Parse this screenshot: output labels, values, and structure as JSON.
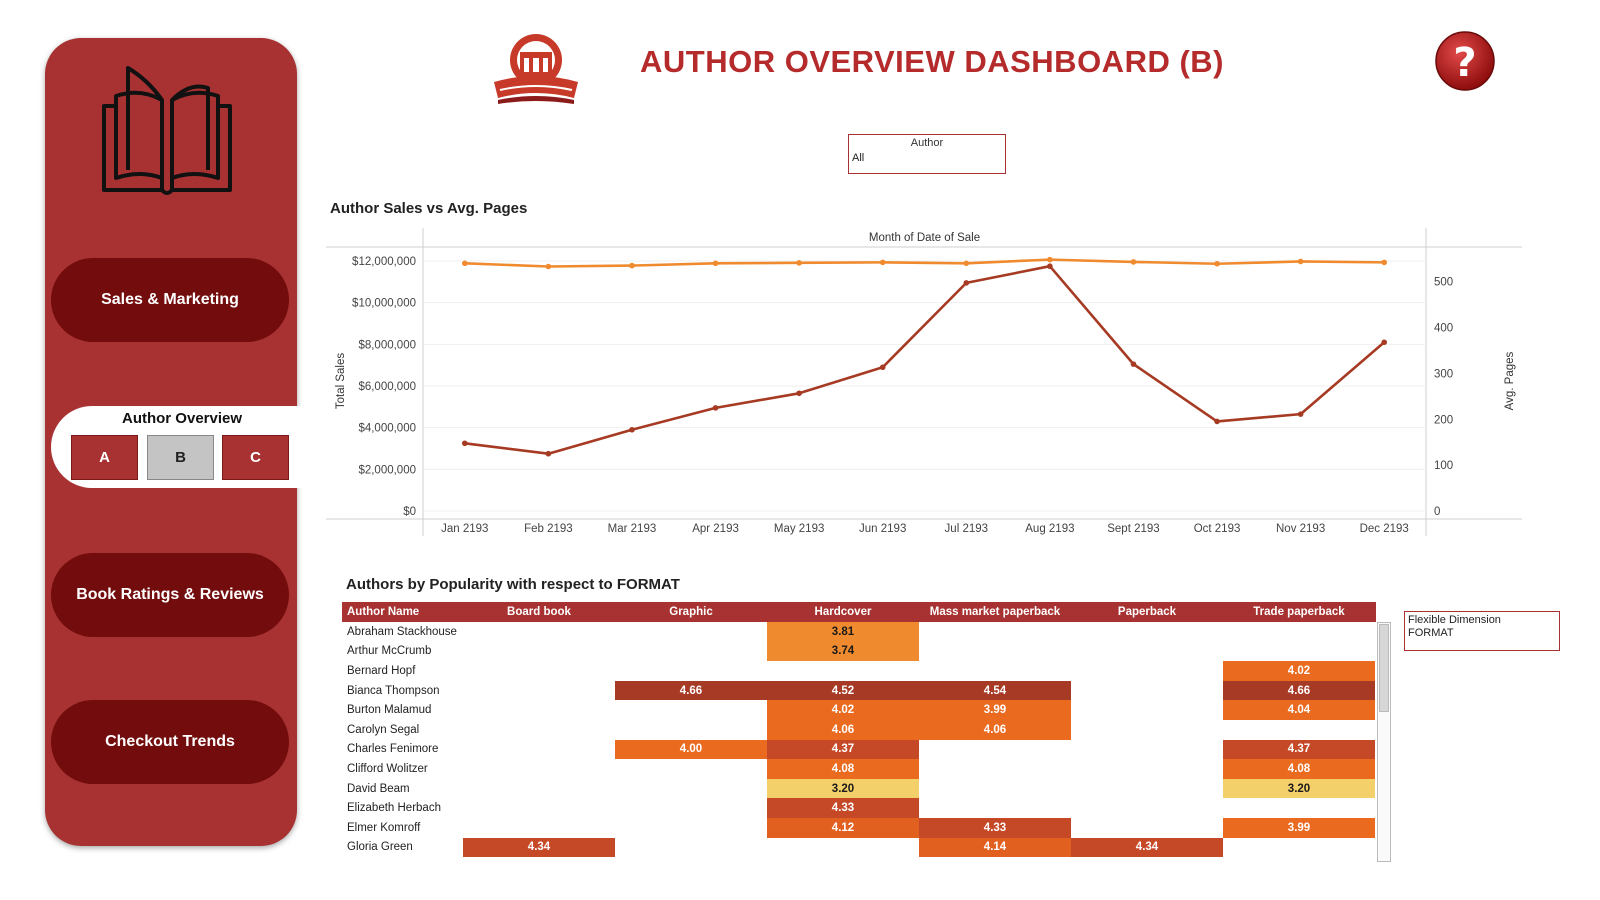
{
  "sidebar": {
    "nav": {
      "sales": "Sales & Marketing",
      "author": "Author Overview",
      "ratings": "Book Ratings & Reviews",
      "checkout": "Checkout Trends"
    },
    "sub_buttons": [
      "A",
      "B",
      "C"
    ],
    "selected_sub": "B"
  },
  "header": {
    "title": "AUTHOR OVERVIEW DASHBOARD (B)",
    "help_glyph": "?"
  },
  "filter": {
    "label": "Author",
    "value": "All"
  },
  "colors": {
    "accent": "#a83232",
    "dark_red": "#730c0c",
    "sales_line": "#a63a22",
    "pages_line": "#f08a2e"
  },
  "chart_data": {
    "type": "line",
    "title": "Author Sales vs Avg. Pages",
    "xlabel": "Month of Date of Sale",
    "ylabel": "Total Sales",
    "y2label": "Avg. Pages",
    "categories": [
      "Jan 2193",
      "Feb 2193",
      "Mar 2193",
      "Apr 2193",
      "May 2193",
      "Jun 2193",
      "Jul 2193",
      "Aug 2193",
      "Sept 2193",
      "Oct 2193",
      "Nov 2193",
      "Dec 2193"
    ],
    "y_ticks": [
      "$0",
      "$2,000,000",
      "$4,000,000",
      "$6,000,000",
      "$8,000,000",
      "$10,000,000",
      "$12,000,000"
    ],
    "y2_ticks": [
      "0",
      "100",
      "200",
      "300",
      "400",
      "500"
    ],
    "ylim": [
      0,
      12000000
    ],
    "y2lim": [
      0,
      545
    ],
    "series": [
      {
        "name": "Total Sales",
        "axis": "left",
        "color": "#a63a22",
        "values": [
          3250000,
          2750000,
          3900000,
          4950000,
          5650000,
          6900000,
          10950000,
          11750000,
          7050000,
          4300000,
          4650000,
          8100000
        ]
      },
      {
        "name": "Avg. Pages",
        "axis": "right",
        "color": "#f08a2e",
        "values": [
          540,
          533,
          535,
          540,
          541,
          542,
          540,
          548,
          543,
          539,
          544,
          542
        ]
      }
    ]
  },
  "table": {
    "title": "Authors by Popularity with respect to FORMAT",
    "headers": [
      "Author Name",
      "Board book",
      "Graphic",
      "Hardcover",
      "Mass market paperback",
      "Paperback",
      "Trade paperback"
    ],
    "rows": [
      {
        "name": "Abraham Stackhouse",
        "values": [
          "",
          "",
          "3.81",
          "",
          "",
          ""
        ]
      },
      {
        "name": "Arthur McCrumb",
        "values": [
          "",
          "",
          "3.74",
          "",
          "",
          ""
        ]
      },
      {
        "name": "Bernard Hopf",
        "values": [
          "",
          "",
          "",
          "",
          "",
          "4.02"
        ]
      },
      {
        "name": "Bianca Thompson",
        "values": [
          "",
          "4.66",
          "4.52",
          "4.54",
          "",
          "4.66"
        ]
      },
      {
        "name": "Burton Malamud",
        "values": [
          "",
          "",
          "4.02",
          "3.99",
          "",
          "4.04"
        ]
      },
      {
        "name": "Carolyn Segal",
        "values": [
          "",
          "",
          "4.06",
          "4.06",
          "",
          ""
        ]
      },
      {
        "name": "Charles Fenimore",
        "values": [
          "",
          "4.00",
          "4.37",
          "",
          "",
          "4.37"
        ]
      },
      {
        "name": "Clifford Wolitzer",
        "values": [
          "",
          "",
          "4.08",
          "",
          "",
          "4.08"
        ]
      },
      {
        "name": "David Beam",
        "values": [
          "",
          "",
          "3.20",
          "",
          "",
          "3.20"
        ]
      },
      {
        "name": "Elizabeth Herbach",
        "values": [
          "",
          "",
          "4.33",
          "",
          "",
          ""
        ]
      },
      {
        "name": "Elmer Komroff",
        "values": [
          "",
          "",
          "4.12",
          "4.33",
          "",
          "3.99"
        ]
      },
      {
        "name": "Gloria Green",
        "values": [
          "4.34",
          "",
          "",
          "4.14",
          "4.34",
          ""
        ]
      }
    ]
  },
  "legend": {
    "line1": "Flexible Dimension",
    "line2": "FORMAT"
  }
}
